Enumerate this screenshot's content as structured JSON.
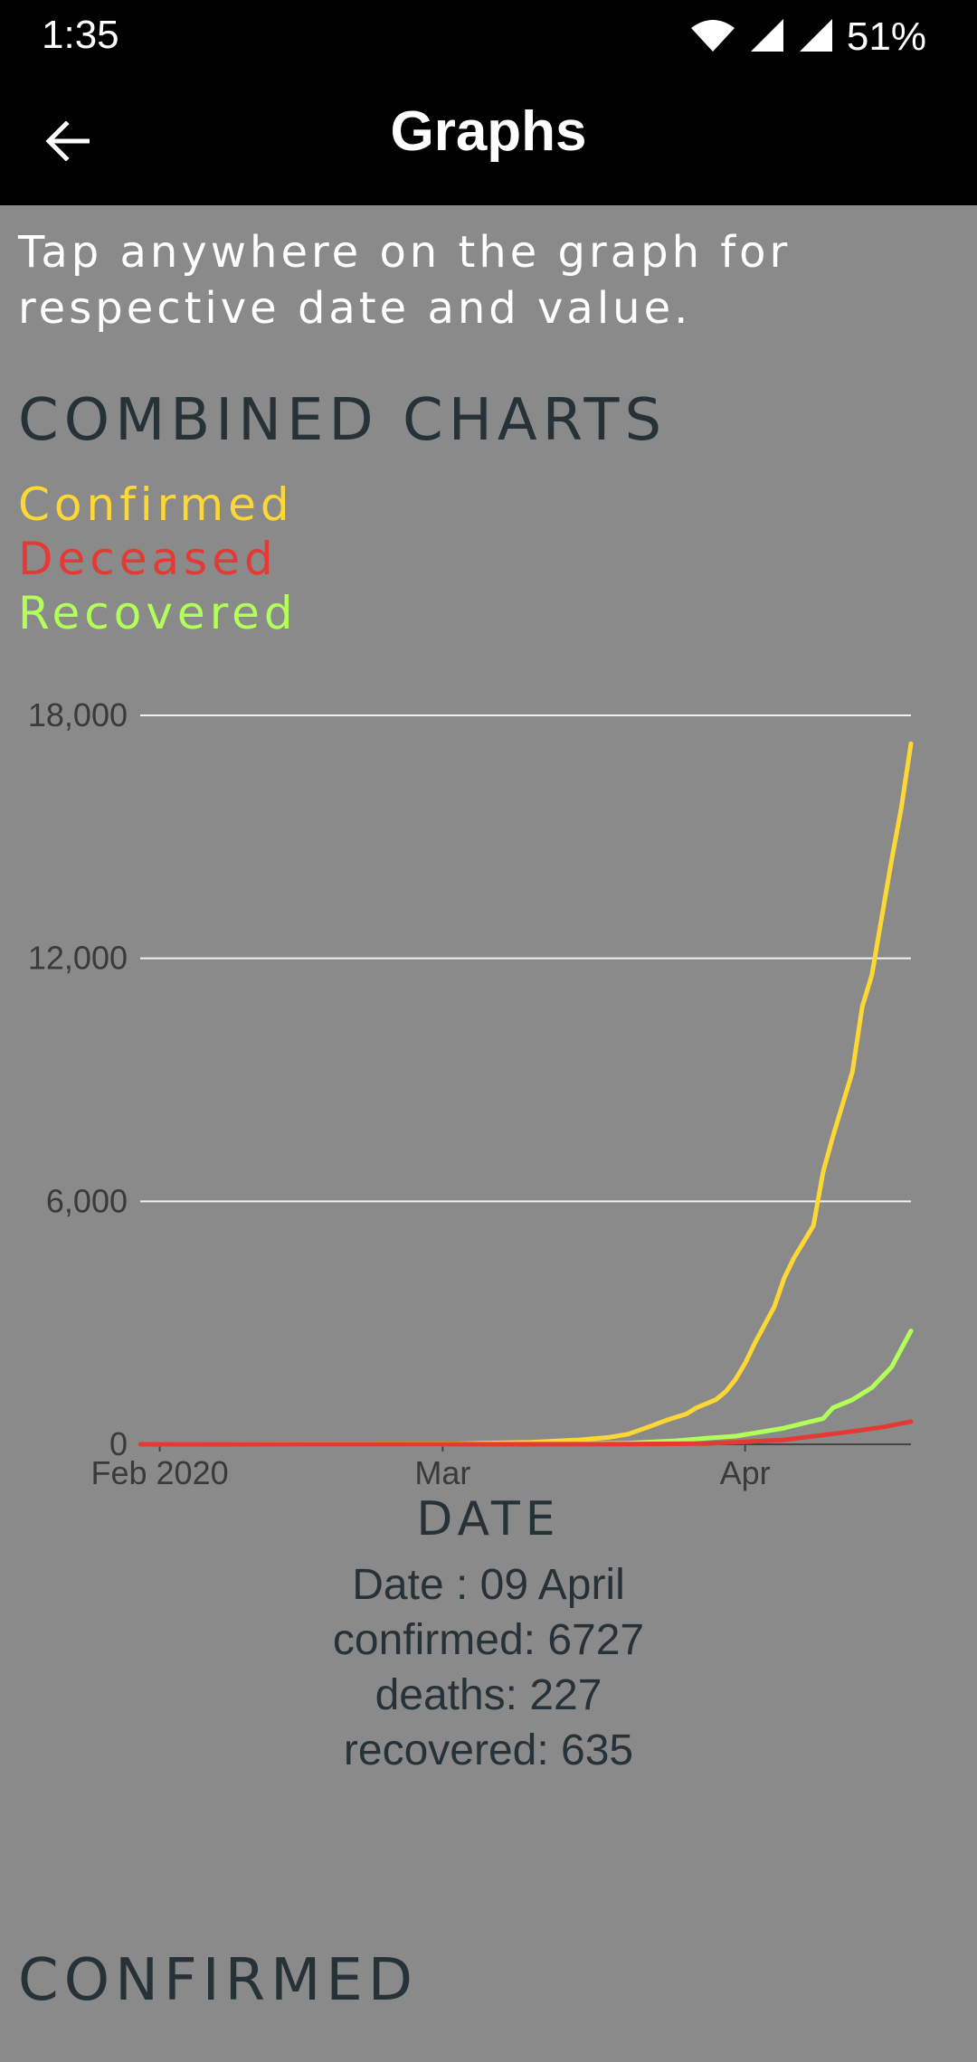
{
  "status_bar": {
    "time": "1:35",
    "battery": "51%"
  },
  "app_bar": {
    "title": "Graphs"
  },
  "hint": "Tap anywhere on the graph for respective date and value.",
  "combined_section": {
    "title": "COMBINED CHARTS",
    "legend": [
      {
        "label": "Confirmed",
        "color": "#fdd835"
      },
      {
        "label": "Deceased",
        "color": "#e53935"
      },
      {
        "label": "Recovered",
        "color": "#b2ff59"
      }
    ]
  },
  "readout": {
    "date": "Date : 09 April",
    "confirmed": "confirmed: 6727",
    "deaths": "deaths: 227",
    "recovered": "recovered: 635"
  },
  "confirmed_section": {
    "title": "CONFIRMED"
  },
  "chart_data": {
    "type": "line",
    "xlabel": "DATE",
    "ylabel": "",
    "ylim": [
      0,
      18000
    ],
    "y_ticks": [
      "0",
      "6,000",
      "12,000",
      "18,000"
    ],
    "x_ticks": [
      {
        "label": "Feb 2020",
        "date": "2020-02-01"
      },
      {
        "label": "Mar",
        "date": "2020-03-01"
      },
      {
        "label": "Apr",
        "date": "2020-04-01"
      }
    ],
    "x_range": [
      "2020-01-30",
      "2020-04-18"
    ],
    "grid": true,
    "legend_placement": "top-left",
    "series": [
      {
        "name": "Confirmed",
        "color": "#fdd835",
        "points": [
          [
            "2020-01-30",
            1
          ],
          [
            "2020-02-15",
            3
          ],
          [
            "2020-03-01",
            3
          ],
          [
            "2020-03-05",
            30
          ],
          [
            "2020-03-10",
            50
          ],
          [
            "2020-03-15",
            110
          ],
          [
            "2020-03-18",
            170
          ],
          [
            "2020-03-20",
            250
          ],
          [
            "2020-03-22",
            420
          ],
          [
            "2020-03-24",
            600
          ],
          [
            "2020-03-26",
            750
          ],
          [
            "2020-03-27",
            900
          ],
          [
            "2020-03-29",
            1100
          ],
          [
            "2020-03-30",
            1300
          ],
          [
            "2020-03-31",
            1600
          ],
          [
            "2020-04-01",
            2000
          ],
          [
            "2020-04-02",
            2500
          ],
          [
            "2020-04-04",
            3400
          ],
          [
            "2020-04-05",
            4100
          ],
          [
            "2020-04-06",
            4600
          ],
          [
            "2020-04-08",
            5400
          ],
          [
            "2020-04-09",
            6727
          ],
          [
            "2020-04-10",
            7600
          ],
          [
            "2020-04-12",
            9200
          ],
          [
            "2020-04-13",
            10800
          ],
          [
            "2020-04-14",
            11600
          ],
          [
            "2020-04-15",
            13000
          ],
          [
            "2020-04-16",
            14400
          ],
          [
            "2020-04-17",
            15700
          ],
          [
            "2020-04-18",
            17300
          ]
        ]
      },
      {
        "name": "Deceased",
        "color": "#e53935",
        "points": [
          [
            "2020-01-30",
            0
          ],
          [
            "2020-03-20",
            5
          ],
          [
            "2020-03-28",
            20
          ],
          [
            "2020-04-01",
            60
          ],
          [
            "2020-04-05",
            110
          ],
          [
            "2020-04-09",
            227
          ],
          [
            "2020-04-12",
            320
          ],
          [
            "2020-04-15",
            420
          ],
          [
            "2020-04-18",
            560
          ]
        ]
      },
      {
        "name": "Recovered",
        "color": "#b2ff59",
        "points": [
          [
            "2020-01-30",
            0
          ],
          [
            "2020-03-15",
            15
          ],
          [
            "2020-03-20",
            30
          ],
          [
            "2020-03-25",
            90
          ],
          [
            "2020-03-28",
            150
          ],
          [
            "2020-03-31",
            200
          ],
          [
            "2020-04-02",
            280
          ],
          [
            "2020-04-05",
            400
          ],
          [
            "2020-04-07",
            520
          ],
          [
            "2020-04-09",
            635
          ],
          [
            "2020-04-10",
            900
          ],
          [
            "2020-04-12",
            1100
          ],
          [
            "2020-04-14",
            1400
          ],
          [
            "2020-04-16",
            1900
          ],
          [
            "2020-04-18",
            2800
          ]
        ]
      }
    ]
  }
}
